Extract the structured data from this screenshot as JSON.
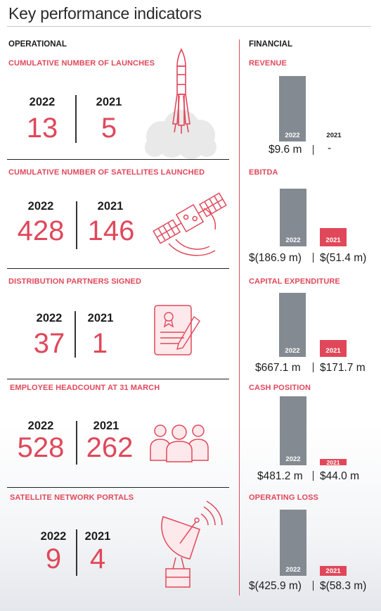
{
  "title": "Key performance indicators",
  "operational": {
    "header": "OPERATIONAL",
    "sections": [
      {
        "label": "CUMULATIVE NUMBER OF LAUNCHES",
        "year_a": "2022",
        "year_b": "2021",
        "value_a": "13",
        "value_b": "5",
        "icon": "rocket-icon"
      },
      {
        "label": "CUMULATIVE NUMBER OF SATELLITES LAUNCHED",
        "year_a": "2022",
        "year_b": "2021",
        "value_a": "428",
        "value_b": "146",
        "icon": "satellite-icon"
      },
      {
        "label": "DISTRIBUTION PARTNERS SIGNED",
        "year_a": "2022",
        "year_b": "2021",
        "value_a": "37",
        "value_b": "1",
        "icon": "contract-icon"
      },
      {
        "label": "EMPLOYEE HEADCOUNT AT 31 MARCH",
        "year_a": "2022",
        "year_b": "2021",
        "value_a": "528",
        "value_b": "262",
        "icon": "people-icon"
      },
      {
        "label": "SATELLITE NETWORK PORTALS",
        "year_a": "2022",
        "year_b": "2021",
        "value_a": "9",
        "value_b": "4",
        "icon": "dish-icon"
      }
    ]
  },
  "financial": {
    "header": "FINANCIAL",
    "sections": [
      {
        "label": "REVENUE",
        "bar_a_label": "2022",
        "bar_b_label": "2021",
        "value_a": "$9.6 m",
        "value_b": "-",
        "bar_a_level": 1.0,
        "bar_b_level": 0
      },
      {
        "label": "EBITDA",
        "bar_a_label": "2022",
        "bar_b_label": "2021",
        "value_a": "$(186.9 m)",
        "value_b": "$(51.4 m)",
        "bar_a_level": 1.0,
        "bar_b_level": 0.3
      },
      {
        "label": "CAPITAL EXPENDITURE",
        "bar_a_label": "2022",
        "bar_b_label": "2021",
        "value_a": "$667.1 m",
        "value_b": "$171.7 m",
        "bar_a_level": 1.0,
        "bar_b_level": 0.26
      },
      {
        "label": "CASH POSITION",
        "bar_a_label": "2022",
        "bar_b_label": "2021",
        "value_a": "$481.2 m",
        "value_b": "$44.0 m",
        "bar_a_level": 1.0,
        "bar_b_level": 0.09
      },
      {
        "label": "OPERATING LOSS",
        "bar_a_label": "2022",
        "bar_b_label": "2021",
        "value_a": "$(425.9 m)",
        "value_b": "$(58.3 m)",
        "bar_a_level": 1.0,
        "bar_b_level": 0.14
      }
    ]
  },
  "colors": {
    "accent": "#e0485a",
    "bar_grey": "#848a91",
    "text": "#1d1d1d"
  }
}
